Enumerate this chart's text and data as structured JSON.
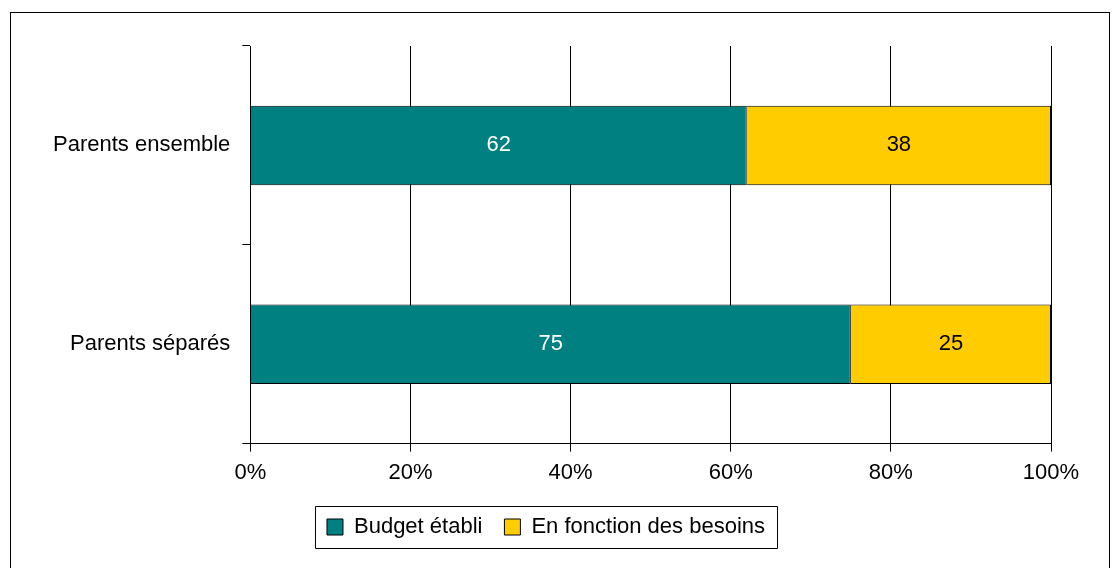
{
  "chart_data": {
    "type": "bar",
    "orientation": "horizontal",
    "stacked": true,
    "categories": [
      "Parents ensemble",
      "Parents séparés"
    ],
    "series": [
      {
        "name": "Budget établi",
        "color": "#008080",
        "values": [
          62,
          75
        ]
      },
      {
        "name": "En fonction des besoins",
        "color": "#ffcc00",
        "values": [
          38,
          25
        ]
      }
    ],
    "xlim": [
      0,
      100
    ],
    "xticks": [
      {
        "value": 0,
        "label": "0%"
      },
      {
        "value": 20,
        "label": "20%"
      },
      {
        "value": 40,
        "label": "40%"
      },
      {
        "value": 60,
        "label": "60%"
      },
      {
        "value": 80,
        "label": "80%"
      },
      {
        "value": 100,
        "label": "100%"
      }
    ],
    "grid": "x",
    "legend": "bottom",
    "data_labels": true
  }
}
